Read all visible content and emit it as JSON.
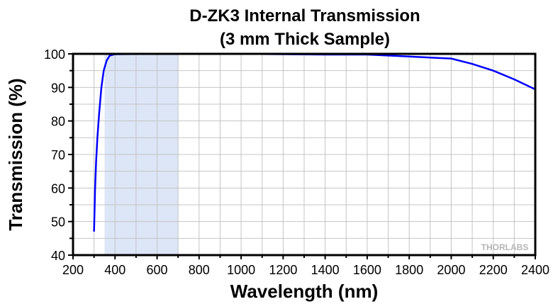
{
  "chart_data": {
    "type": "line",
    "title": "D-ZK3 Internal Transmission",
    "subtitle": "(3 mm Thick Sample)",
    "xlabel": "Wavelength (nm)",
    "ylabel": "Transmission (%)",
    "xlim": [
      200,
      2400
    ],
    "ylim": [
      40,
      100
    ],
    "xticks": [
      200,
      400,
      600,
      800,
      1000,
      1200,
      1400,
      1600,
      1800,
      2000,
      2200,
      2400
    ],
    "yticks": [
      40,
      50,
      60,
      70,
      80,
      90,
      100
    ],
    "grid": true,
    "shaded_region": [
      350,
      700
    ],
    "watermark": "THORLABS",
    "series": [
      {
        "name": "D-ZK3",
        "color": "#0000ff",
        "x": [
          300,
          305,
          310,
          316,
          324,
          335,
          346,
          360,
          375,
          400,
          600,
          1000,
          1200,
          1400,
          1600,
          1700,
          1800,
          1900,
          2000,
          2100,
          2200,
          2300,
          2400
        ],
        "y": [
          47,
          60,
          68,
          75,
          82,
          90,
          95,
          98,
          99.5,
          99.9,
          100,
          100,
          99.9,
          99.8,
          99.8,
          99.5,
          99.2,
          98.9,
          98.6,
          97.0,
          95.0,
          92.4,
          89.4
        ]
      }
    ]
  }
}
